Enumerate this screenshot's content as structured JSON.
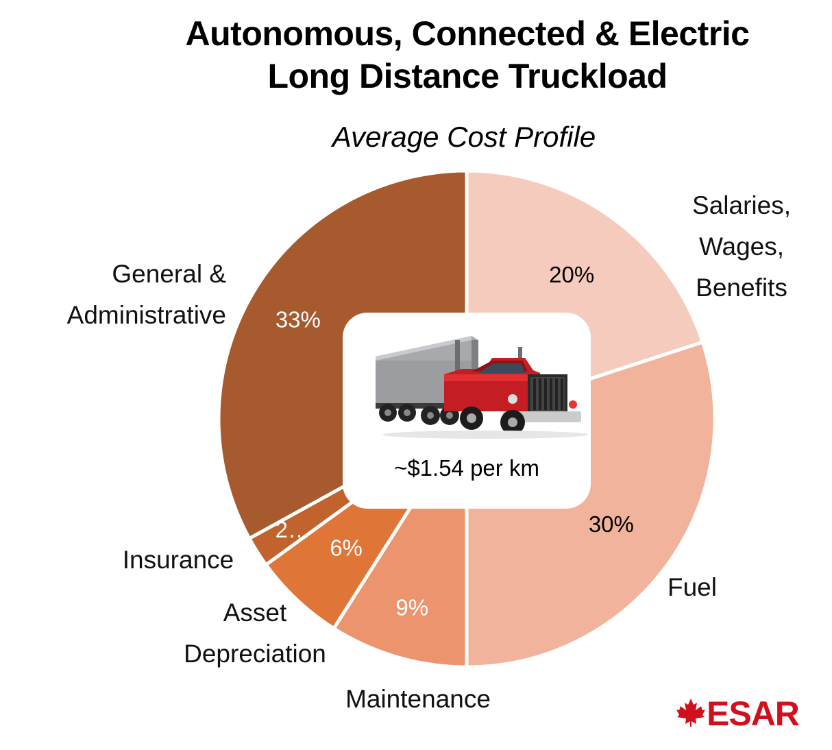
{
  "chart_data": {
    "type": "pie",
    "title_lines": [
      "Autonomous, Connected & Electric",
      "Long Distance Truckload"
    ],
    "subtitle": "Average Cost Profile",
    "center_label": "~$1.54 per km",
    "slices": [
      {
        "label_lines": [
          "Salaries,",
          "Wages,",
          "Benefits"
        ],
        "value": 20,
        "value_label": "20%",
        "color": "#f5cbbd"
      },
      {
        "label_lines": [
          "Fuel"
        ],
        "value": 30,
        "value_label": "30%",
        "color": "#f1b39c"
      },
      {
        "label_lines": [
          "Maintenance"
        ],
        "value": 9,
        "value_label": "9%",
        "color": "#ec946d"
      },
      {
        "label_lines": [
          "Asset",
          "Depreciation"
        ],
        "value": 6,
        "value_label": "6%",
        "color": "#e07538"
      },
      {
        "label_lines": [
          "Insurance"
        ],
        "value": 2,
        "value_label": "2…",
        "color": "#c2622c"
      },
      {
        "label_lines": [
          "General &",
          "Administrative"
        ],
        "value": 33,
        "value_label": "33%",
        "color": "#a65a2e"
      }
    ]
  },
  "logo": {
    "text": "CESAR",
    "color": "#d0101c"
  }
}
